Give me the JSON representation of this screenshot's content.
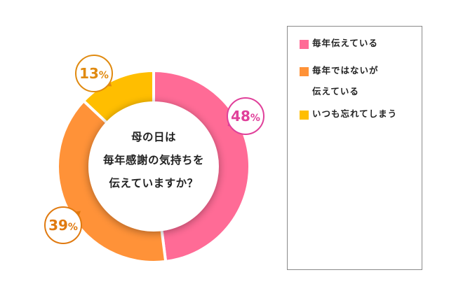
{
  "chart_data": {
    "type": "pie",
    "variant": "donut",
    "title": "母の日は 毎年感謝の気持ちを 伝えていますか？",
    "categories": [
      "毎年伝えている",
      "毎年ではないが伝えている",
      "いつも忘れてしまう"
    ],
    "values": [
      48,
      39,
      13
    ],
    "unit": "%",
    "colors": [
      "#ff6b96",
      "#ff9238",
      "#ffbe00"
    ],
    "label_colors": [
      "#e0409a",
      "#e07a10",
      "#e08a10"
    ],
    "legend_position": "right",
    "start_angle": "12 o'clock, clockwise"
  },
  "center": {
    "line1": "母の日は",
    "line2": "毎年感謝の気持ちを",
    "line3": "伝えていますか？"
  },
  "labels": {
    "slice0": "48",
    "slice1": "39",
    "slice2": "13",
    "percent": "%"
  },
  "legend": {
    "items": [
      {
        "label": "毎年伝えている",
        "color": "#ff6b96"
      },
      {
        "label": "毎年ではないが\n伝えている",
        "color": "#ff9238"
      },
      {
        "label": "いつも忘れてしまう",
        "color": "#ffbe00"
      }
    ]
  }
}
